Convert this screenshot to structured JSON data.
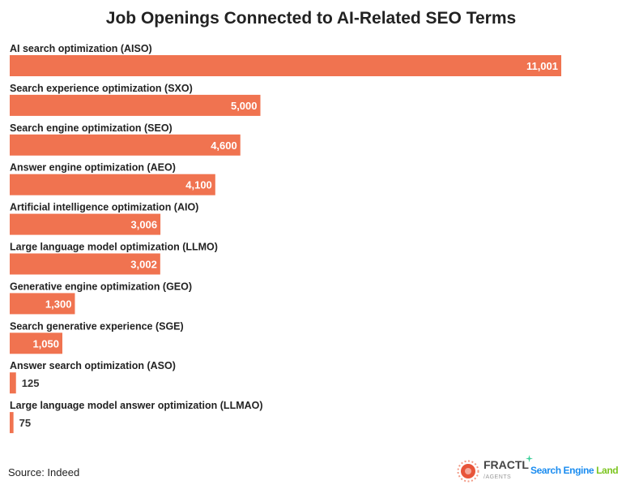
{
  "chart_data": {
    "type": "bar",
    "orientation": "horizontal",
    "title": "Job Openings Connected to AI-Related SEO Terms",
    "categories": [
      "AI search optimization (AISO)",
      "Search experience optimization (SXO)",
      "Search engine optimization (SEO)",
      "Answer engine optimization (AEO)",
      "Artificial intelligence optimization (AIO)",
      "Large language model optimization (LLMO)",
      "Generative engine optimization (GEO)",
      "Search generative experience (SGE)",
      "Answer search optimization (ASO)",
      "Large language model answer optimization (LLMAO)"
    ],
    "values": [
      11001,
      5000,
      4600,
      4100,
      3006,
      3002,
      1300,
      1050,
      125,
      75
    ],
    "data_labels": [
      "11,001",
      "5,000",
      "4,600",
      "4,100",
      "3,006",
      "3,002",
      "1,300",
      "1,050",
      "125",
      "75"
    ],
    "xlim": [
      0,
      11001
    ],
    "grid": false,
    "legend": "none",
    "bar_color": "#F07350"
  },
  "footer": {
    "source": "Source: Indeed",
    "logo1_name": "FRACTL",
    "logo1_sub": "/AGENTS",
    "logo2_part1": "Search Engine",
    "logo2_part2": "Land"
  }
}
